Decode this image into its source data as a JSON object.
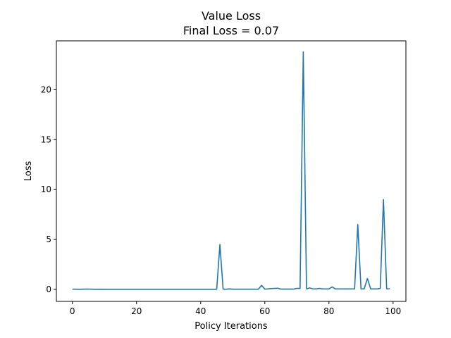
{
  "chart_data": {
    "type": "line",
    "title": "Value Loss",
    "subtitle": "Final Loss = 0.07",
    "xlabel": "Policy Iterations",
    "ylabel": "Loss",
    "xlim": [
      -5,
      104
    ],
    "ylim": [
      -1.2,
      24.9
    ],
    "xticks": [
      0,
      20,
      40,
      60,
      80,
      100
    ],
    "yticks": [
      0,
      5,
      10,
      15,
      20
    ],
    "grid": false,
    "series": [
      {
        "color": "#1f77b4",
        "x": [
          0,
          1,
          2,
          3,
          4,
          5,
          6,
          7,
          8,
          9,
          10,
          11,
          12,
          13,
          14,
          15,
          16,
          17,
          18,
          19,
          20,
          21,
          22,
          23,
          24,
          25,
          26,
          27,
          28,
          29,
          30,
          31,
          32,
          33,
          34,
          35,
          36,
          37,
          38,
          39,
          40,
          41,
          42,
          43,
          44,
          45,
          46,
          47,
          48,
          49,
          50,
          51,
          52,
          53,
          54,
          55,
          56,
          57,
          58,
          59,
          60,
          61,
          62,
          63,
          64,
          65,
          66,
          67,
          68,
          69,
          70,
          71,
          72,
          73,
          74,
          75,
          76,
          77,
          78,
          79,
          80,
          81,
          82,
          83,
          84,
          85,
          86,
          87,
          88,
          89,
          90,
          91,
          92,
          93,
          94,
          95,
          96,
          97,
          98,
          99
        ],
        "y": [
          0.02,
          0.02,
          0.01,
          0.02,
          0.03,
          0.03,
          0.02,
          0.01,
          0.01,
          0.02,
          0.01,
          0.01,
          0.01,
          0.01,
          0.01,
          0.01,
          0.01,
          0.01,
          0.01,
          0.01,
          0.01,
          0.01,
          0.01,
          0.01,
          0.01,
          0.01,
          0.01,
          0.01,
          0.01,
          0.01,
          0.01,
          0.01,
          0.01,
          0.01,
          0.01,
          0.01,
          0.01,
          0.01,
          0.01,
          0.01,
          0.01,
          0.01,
          0.01,
          0.01,
          0.01,
          0.01,
          4.5,
          0.02,
          0.02,
          0.05,
          0.02,
          0.02,
          0.02,
          0.02,
          0.02,
          0.02,
          0.02,
          0.02,
          0.02,
          0.4,
          0.03,
          0.05,
          0.08,
          0.1,
          0.12,
          0.03,
          0.03,
          0.03,
          0.03,
          0.03,
          0.1,
          0.1,
          23.8,
          0.05,
          0.15,
          0.05,
          0.05,
          0.1,
          0.05,
          0.05,
          0.05,
          0.25,
          0.05,
          0.05,
          0.05,
          0.05,
          0.05,
          0.05,
          0.05,
          6.5,
          0.05,
          0.05,
          1.1,
          0.05,
          0.05,
          0.05,
          0.1,
          9.0,
          0.05,
          0.07
        ]
      }
    ]
  }
}
